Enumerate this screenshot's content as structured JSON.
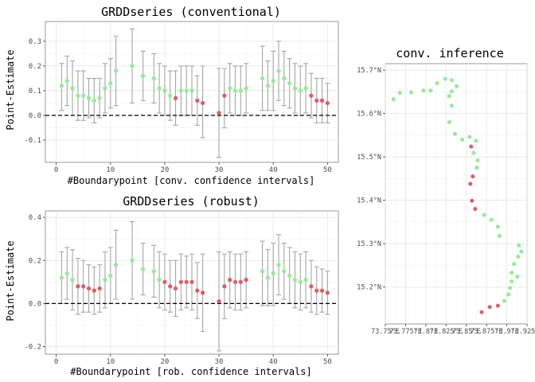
{
  "colors": {
    "insignificant": "#90EE90",
    "significant": "#E8575F",
    "errorbar": "#A6A6A6"
  },
  "chart_data": [
    {
      "type": "scatter",
      "subtype": "point-estimates-with-error-bars",
      "title": "GRDDseries (conventional)",
      "xlabel": "#Boundarypoint [conv. confidence intervals]",
      "ylabel": "Point-Estimate",
      "xlim": [
        -2,
        52
      ],
      "ylim": [
        -0.19,
        0.38
      ],
      "x_ticks": [
        0,
        10,
        20,
        30,
        40,
        50
      ],
      "y_ticks": [
        -0.1,
        0.0,
        0.1,
        0.2,
        0.3
      ],
      "y_tick_labels": [
        "-0.1",
        "0.0",
        "0.1",
        "0.2",
        "0.3"
      ],
      "reference_line": 0,
      "points": [
        {
          "x": 1,
          "y": 0.12,
          "lo": 0.02,
          "hi": 0.21,
          "sig": false
        },
        {
          "x": 2,
          "y": 0.14,
          "lo": 0.04,
          "hi": 0.24,
          "sig": false
        },
        {
          "x": 3,
          "y": 0.11,
          "lo": 0.0,
          "hi": 0.22,
          "sig": false
        },
        {
          "x": 4,
          "y": 0.08,
          "lo": -0.02,
          "hi": 0.18,
          "sig": false
        },
        {
          "x": 5,
          "y": 0.08,
          "lo": -0.02,
          "hi": 0.18,
          "sig": false
        },
        {
          "x": 6,
          "y": 0.07,
          "lo": -0.01,
          "hi": 0.15,
          "sig": false
        },
        {
          "x": 7,
          "y": 0.06,
          "lo": -0.03,
          "hi": 0.15,
          "sig": false
        },
        {
          "x": 8,
          "y": 0.07,
          "lo": -0.01,
          "hi": 0.15,
          "sig": false
        },
        {
          "x": 9,
          "y": 0.11,
          "lo": 0.01,
          "hi": 0.21,
          "sig": false
        },
        {
          "x": 10,
          "y": 0.13,
          "lo": 0.03,
          "hi": 0.23,
          "sig": false
        },
        {
          "x": 11,
          "y": 0.18,
          "lo": 0.04,
          "hi": 0.32,
          "sig": false
        },
        {
          "x": 14,
          "y": 0.2,
          "lo": 0.05,
          "hi": 0.35,
          "sig": false
        },
        {
          "x": 16,
          "y": 0.16,
          "lo": 0.06,
          "hi": 0.26,
          "sig": false
        },
        {
          "x": 18,
          "y": 0.15,
          "lo": 0.05,
          "hi": 0.25,
          "sig": false
        },
        {
          "x": 19,
          "y": 0.11,
          "lo": 0.01,
          "hi": 0.21,
          "sig": false
        },
        {
          "x": 20,
          "y": 0.1,
          "lo": 0.0,
          "hi": 0.2,
          "sig": false
        },
        {
          "x": 21,
          "y": 0.08,
          "lo": -0.02,
          "hi": 0.18,
          "sig": false
        },
        {
          "x": 22,
          "y": 0.07,
          "lo": -0.04,
          "hi": 0.18,
          "sig": true
        },
        {
          "x": 23,
          "y": 0.1,
          "lo": 0.0,
          "hi": 0.2,
          "sig": false
        },
        {
          "x": 24,
          "y": 0.1,
          "lo": 0.0,
          "hi": 0.2,
          "sig": false
        },
        {
          "x": 25,
          "y": 0.1,
          "lo": 0.0,
          "hi": 0.2,
          "sig": false
        },
        {
          "x": 26,
          "y": 0.06,
          "lo": -0.04,
          "hi": 0.16,
          "sig": true
        },
        {
          "x": 27,
          "y": 0.05,
          "lo": -0.09,
          "hi": 0.2,
          "sig": true
        },
        {
          "x": 30,
          "y": 0.01,
          "lo": -0.17,
          "hi": 0.19,
          "sig": true
        },
        {
          "x": 31,
          "y": 0.08,
          "lo": -0.05,
          "hi": 0.19,
          "sig": true
        },
        {
          "x": 32,
          "y": 0.11,
          "lo": 0.01,
          "hi": 0.21,
          "sig": false
        },
        {
          "x": 33,
          "y": 0.1,
          "lo": 0.0,
          "hi": 0.2,
          "sig": false
        },
        {
          "x": 34,
          "y": 0.1,
          "lo": 0.0,
          "hi": 0.2,
          "sig": false
        },
        {
          "x": 35,
          "y": 0.11,
          "lo": 0.01,
          "hi": 0.21,
          "sig": false
        },
        {
          "x": 38,
          "y": 0.15,
          "lo": 0.02,
          "hi": 0.28,
          "sig": false
        },
        {
          "x": 39,
          "y": 0.12,
          "lo": 0.02,
          "hi": 0.22,
          "sig": false
        },
        {
          "x": 40,
          "y": 0.14,
          "lo": 0.02,
          "hi": 0.26,
          "sig": false
        },
        {
          "x": 41,
          "y": 0.18,
          "lo": 0.06,
          "hi": 0.3,
          "sig": false
        },
        {
          "x": 42,
          "y": 0.15,
          "lo": 0.04,
          "hi": 0.26,
          "sig": false
        },
        {
          "x": 43,
          "y": 0.13,
          "lo": 0.03,
          "hi": 0.23,
          "sig": false
        },
        {
          "x": 44,
          "y": 0.11,
          "lo": 0.01,
          "hi": 0.21,
          "sig": false
        },
        {
          "x": 45,
          "y": 0.1,
          "lo": 0.0,
          "hi": 0.2,
          "sig": false
        },
        {
          "x": 46,
          "y": 0.11,
          "lo": 0.01,
          "hi": 0.21,
          "sig": false
        },
        {
          "x": 47,
          "y": 0.08,
          "lo": -0.01,
          "hi": 0.17,
          "sig": true
        },
        {
          "x": 48,
          "y": 0.06,
          "lo": -0.03,
          "hi": 0.15,
          "sig": true
        },
        {
          "x": 49,
          "y": 0.06,
          "lo": -0.03,
          "hi": 0.15,
          "sig": true
        },
        {
          "x": 50,
          "y": 0.05,
          "lo": -0.03,
          "hi": 0.13,
          "sig": true
        }
      ]
    },
    {
      "type": "scatter",
      "subtype": "point-estimates-with-error-bars",
      "title": "GRDDseries (robust)",
      "xlabel": "#Boundarypoint [rob. confidence intervals]",
      "ylabel": "Point-Estimate",
      "xlim": [
        -2,
        52
      ],
      "ylim": [
        -0.235,
        0.43
      ],
      "x_ticks": [
        0,
        10,
        20,
        30,
        40,
        50
      ],
      "y_ticks": [
        -0.2,
        0.0,
        0.2,
        0.4
      ],
      "y_tick_labels": [
        "-0.2",
        "0.0",
        "0.2",
        "0.4"
      ],
      "reference_line": 0,
      "points": [
        {
          "x": 1,
          "y": 0.12,
          "lo": 0.0,
          "hi": 0.24,
          "sig": false
        },
        {
          "x": 2,
          "y": 0.14,
          "lo": 0.02,
          "hi": 0.26,
          "sig": false
        },
        {
          "x": 3,
          "y": 0.11,
          "lo": -0.03,
          "hi": 0.25,
          "sig": false
        },
        {
          "x": 4,
          "y": 0.08,
          "lo": -0.05,
          "hi": 0.21,
          "sig": true
        },
        {
          "x": 5,
          "y": 0.08,
          "lo": -0.04,
          "hi": 0.2,
          "sig": true
        },
        {
          "x": 6,
          "y": 0.07,
          "lo": -0.04,
          "hi": 0.18,
          "sig": true
        },
        {
          "x": 7,
          "y": 0.06,
          "lo": -0.05,
          "hi": 0.17,
          "sig": true
        },
        {
          "x": 8,
          "y": 0.07,
          "lo": -0.04,
          "hi": 0.18,
          "sig": true
        },
        {
          "x": 9,
          "y": 0.11,
          "lo": -0.02,
          "hi": 0.24,
          "sig": false
        },
        {
          "x": 10,
          "y": 0.13,
          "lo": 0.0,
          "hi": 0.26,
          "sig": false
        },
        {
          "x": 11,
          "y": 0.18,
          "lo": 0.02,
          "hi": 0.34,
          "sig": false
        },
        {
          "x": 14,
          "y": 0.2,
          "lo": 0.02,
          "hi": 0.38,
          "sig": false
        },
        {
          "x": 16,
          "y": 0.16,
          "lo": 0.04,
          "hi": 0.28,
          "sig": false
        },
        {
          "x": 18,
          "y": 0.15,
          "lo": 0.03,
          "hi": 0.27,
          "sig": false
        },
        {
          "x": 19,
          "y": 0.11,
          "lo": -0.02,
          "hi": 0.24,
          "sig": false
        },
        {
          "x": 20,
          "y": 0.1,
          "lo": -0.03,
          "hi": 0.23,
          "sig": true
        },
        {
          "x": 21,
          "y": 0.08,
          "lo": -0.04,
          "hi": 0.2,
          "sig": true
        },
        {
          "x": 22,
          "y": 0.07,
          "lo": -0.06,
          "hi": 0.2,
          "sig": true
        },
        {
          "x": 23,
          "y": 0.1,
          "lo": -0.03,
          "hi": 0.23,
          "sig": true
        },
        {
          "x": 24,
          "y": 0.1,
          "lo": -0.02,
          "hi": 0.22,
          "sig": true
        },
        {
          "x": 25,
          "y": 0.1,
          "lo": -0.03,
          "hi": 0.23,
          "sig": true
        },
        {
          "x": 26,
          "y": 0.06,
          "lo": -0.07,
          "hi": 0.19,
          "sig": true
        },
        {
          "x": 27,
          "y": 0.05,
          "lo": -0.13,
          "hi": 0.23,
          "sig": true
        },
        {
          "x": 30,
          "y": 0.01,
          "lo": -0.22,
          "hi": 0.24,
          "sig": true
        },
        {
          "x": 31,
          "y": 0.08,
          "lo": -0.07,
          "hi": 0.23,
          "sig": true
        },
        {
          "x": 32,
          "y": 0.11,
          "lo": -0.02,
          "hi": 0.24,
          "sig": true
        },
        {
          "x": 33,
          "y": 0.1,
          "lo": -0.03,
          "hi": 0.23,
          "sig": true
        },
        {
          "x": 34,
          "y": 0.1,
          "lo": -0.03,
          "hi": 0.23,
          "sig": true
        },
        {
          "x": 35,
          "y": 0.11,
          "lo": -0.02,
          "hi": 0.24,
          "sig": true
        },
        {
          "x": 38,
          "y": 0.15,
          "lo": -0.01,
          "hi": 0.29,
          "sig": false
        },
        {
          "x": 39,
          "y": 0.12,
          "lo": -0.01,
          "hi": 0.25,
          "sig": false
        },
        {
          "x": 40,
          "y": 0.14,
          "lo": -0.01,
          "hi": 0.28,
          "sig": false
        },
        {
          "x": 41,
          "y": 0.18,
          "lo": 0.04,
          "hi": 0.32,
          "sig": false
        },
        {
          "x": 42,
          "y": 0.15,
          "lo": 0.02,
          "hi": 0.28,
          "sig": false
        },
        {
          "x": 43,
          "y": 0.13,
          "lo": 0.0,
          "hi": 0.26,
          "sig": false
        },
        {
          "x": 44,
          "y": 0.11,
          "lo": -0.02,
          "hi": 0.24,
          "sig": false
        },
        {
          "x": 45,
          "y": 0.1,
          "lo": -0.03,
          "hi": 0.23,
          "sig": false
        },
        {
          "x": 46,
          "y": 0.11,
          "lo": -0.02,
          "hi": 0.24,
          "sig": false
        },
        {
          "x": 47,
          "y": 0.08,
          "lo": -0.04,
          "hi": 0.2,
          "sig": true
        },
        {
          "x": 48,
          "y": 0.06,
          "lo": -0.05,
          "hi": 0.17,
          "sig": true
        },
        {
          "x": 49,
          "y": 0.06,
          "lo": -0.04,
          "hi": 0.16,
          "sig": true
        },
        {
          "x": 50,
          "y": 0.05,
          "lo": -0.05,
          "hi": 0.15,
          "sig": true
        }
      ]
    },
    {
      "type": "scatter",
      "subtype": "map",
      "title": "conv. inference",
      "xlabel": "",
      "ylabel": "",
      "xlim": [
        73.75,
        73.925
      ],
      "ylim": [
        15.115,
        15.715
      ],
      "x_ticks": [
        73.75,
        73.775,
        73.8,
        73.825,
        73.85,
        73.875,
        73.9,
        73.925
      ],
      "x_tick_labels": [
        "73.75°E",
        "73.775°E",
        "73.8°E",
        "73.825°E",
        "73.85°E",
        "73.875°E",
        "73.9°E",
        "73.925°E"
      ],
      "y_ticks": [
        15.2,
        15.3,
        15.4,
        15.5,
        15.6,
        15.7
      ],
      "y_tick_labels": [
        "15.2°N",
        "15.3°N",
        "15.4°N",
        "15.5°N",
        "15.6°N",
        "15.7°N"
      ],
      "points": [
        {
          "lon": 73.76,
          "lat": 15.633,
          "sig": false
        },
        {
          "lon": 73.768,
          "lat": 15.648,
          "sig": false
        },
        {
          "lon": 73.782,
          "lat": 15.649,
          "sig": false
        },
        {
          "lon": 73.797,
          "lat": 15.653,
          "sig": false
        },
        {
          "lon": 73.806,
          "lat": 15.653,
          "sig": false
        },
        {
          "lon": 73.814,
          "lat": 15.67,
          "sig": false
        },
        {
          "lon": 73.824,
          "lat": 15.68,
          "sig": false
        },
        {
          "lon": 73.832,
          "lat": 15.677,
          "sig": false
        },
        {
          "lon": 73.838,
          "lat": 15.663,
          "sig": false
        },
        {
          "lon": 73.832,
          "lat": 15.651,
          "sig": false
        },
        {
          "lon": 73.829,
          "lat": 15.64,
          "sig": false
        },
        {
          "lon": 73.832,
          "lat": 15.618,
          "sig": false
        },
        {
          "lon": 73.829,
          "lat": 15.58,
          "sig": false
        },
        {
          "lon": 73.836,
          "lat": 15.553,
          "sig": false
        },
        {
          "lon": 73.845,
          "lat": 15.54,
          "sig": false
        },
        {
          "lon": 73.854,
          "lat": 15.546,
          "sig": false
        },
        {
          "lon": 73.862,
          "lat": 15.537,
          "sig": false
        },
        {
          "lon": 73.859,
          "lat": 15.509,
          "sig": false
        },
        {
          "lon": 73.864,
          "lat": 15.492,
          "sig": false
        },
        {
          "lon": 73.863,
          "lat": 15.475,
          "sig": false
        },
        {
          "lon": 73.856,
          "lat": 15.524,
          "sig": true
        },
        {
          "lon": 73.858,
          "lat": 15.455,
          "sig": true
        },
        {
          "lon": 73.855,
          "lat": 15.438,
          "sig": true
        },
        {
          "lon": 73.857,
          "lat": 15.399,
          "sig": true
        },
        {
          "lon": 73.861,
          "lat": 15.38,
          "sig": true
        },
        {
          "lon": 73.872,
          "lat": 15.366,
          "sig": false
        },
        {
          "lon": 73.881,
          "lat": 15.355,
          "sig": false
        },
        {
          "lon": 73.889,
          "lat": 15.339,
          "sig": false
        },
        {
          "lon": 73.891,
          "lat": 15.318,
          "sig": false
        },
        {
          "lon": 73.869,
          "lat": 15.142,
          "sig": true
        },
        {
          "lon": 73.879,
          "lat": 15.154,
          "sig": true
        },
        {
          "lon": 73.889,
          "lat": 15.157,
          "sig": true
        },
        {
          "lon": 73.897,
          "lat": 15.168,
          "sig": false
        },
        {
          "lon": 73.902,
          "lat": 15.183,
          "sig": false
        },
        {
          "lon": 73.904,
          "lat": 15.198,
          "sig": false
        },
        {
          "lon": 73.906,
          "lat": 15.213,
          "sig": false
        },
        {
          "lon": 73.906,
          "lat": 15.233,
          "sig": false
        },
        {
          "lon": 73.909,
          "lat": 15.253,
          "sig": false
        },
        {
          "lon": 73.914,
          "lat": 15.27,
          "sig": false
        },
        {
          "lon": 73.918,
          "lat": 15.282,
          "sig": false
        },
        {
          "lon": 73.915,
          "lat": 15.296,
          "sig": false
        },
        {
          "lon": 73.913,
          "lat": 15.224,
          "sig": false
        }
      ]
    }
  ]
}
